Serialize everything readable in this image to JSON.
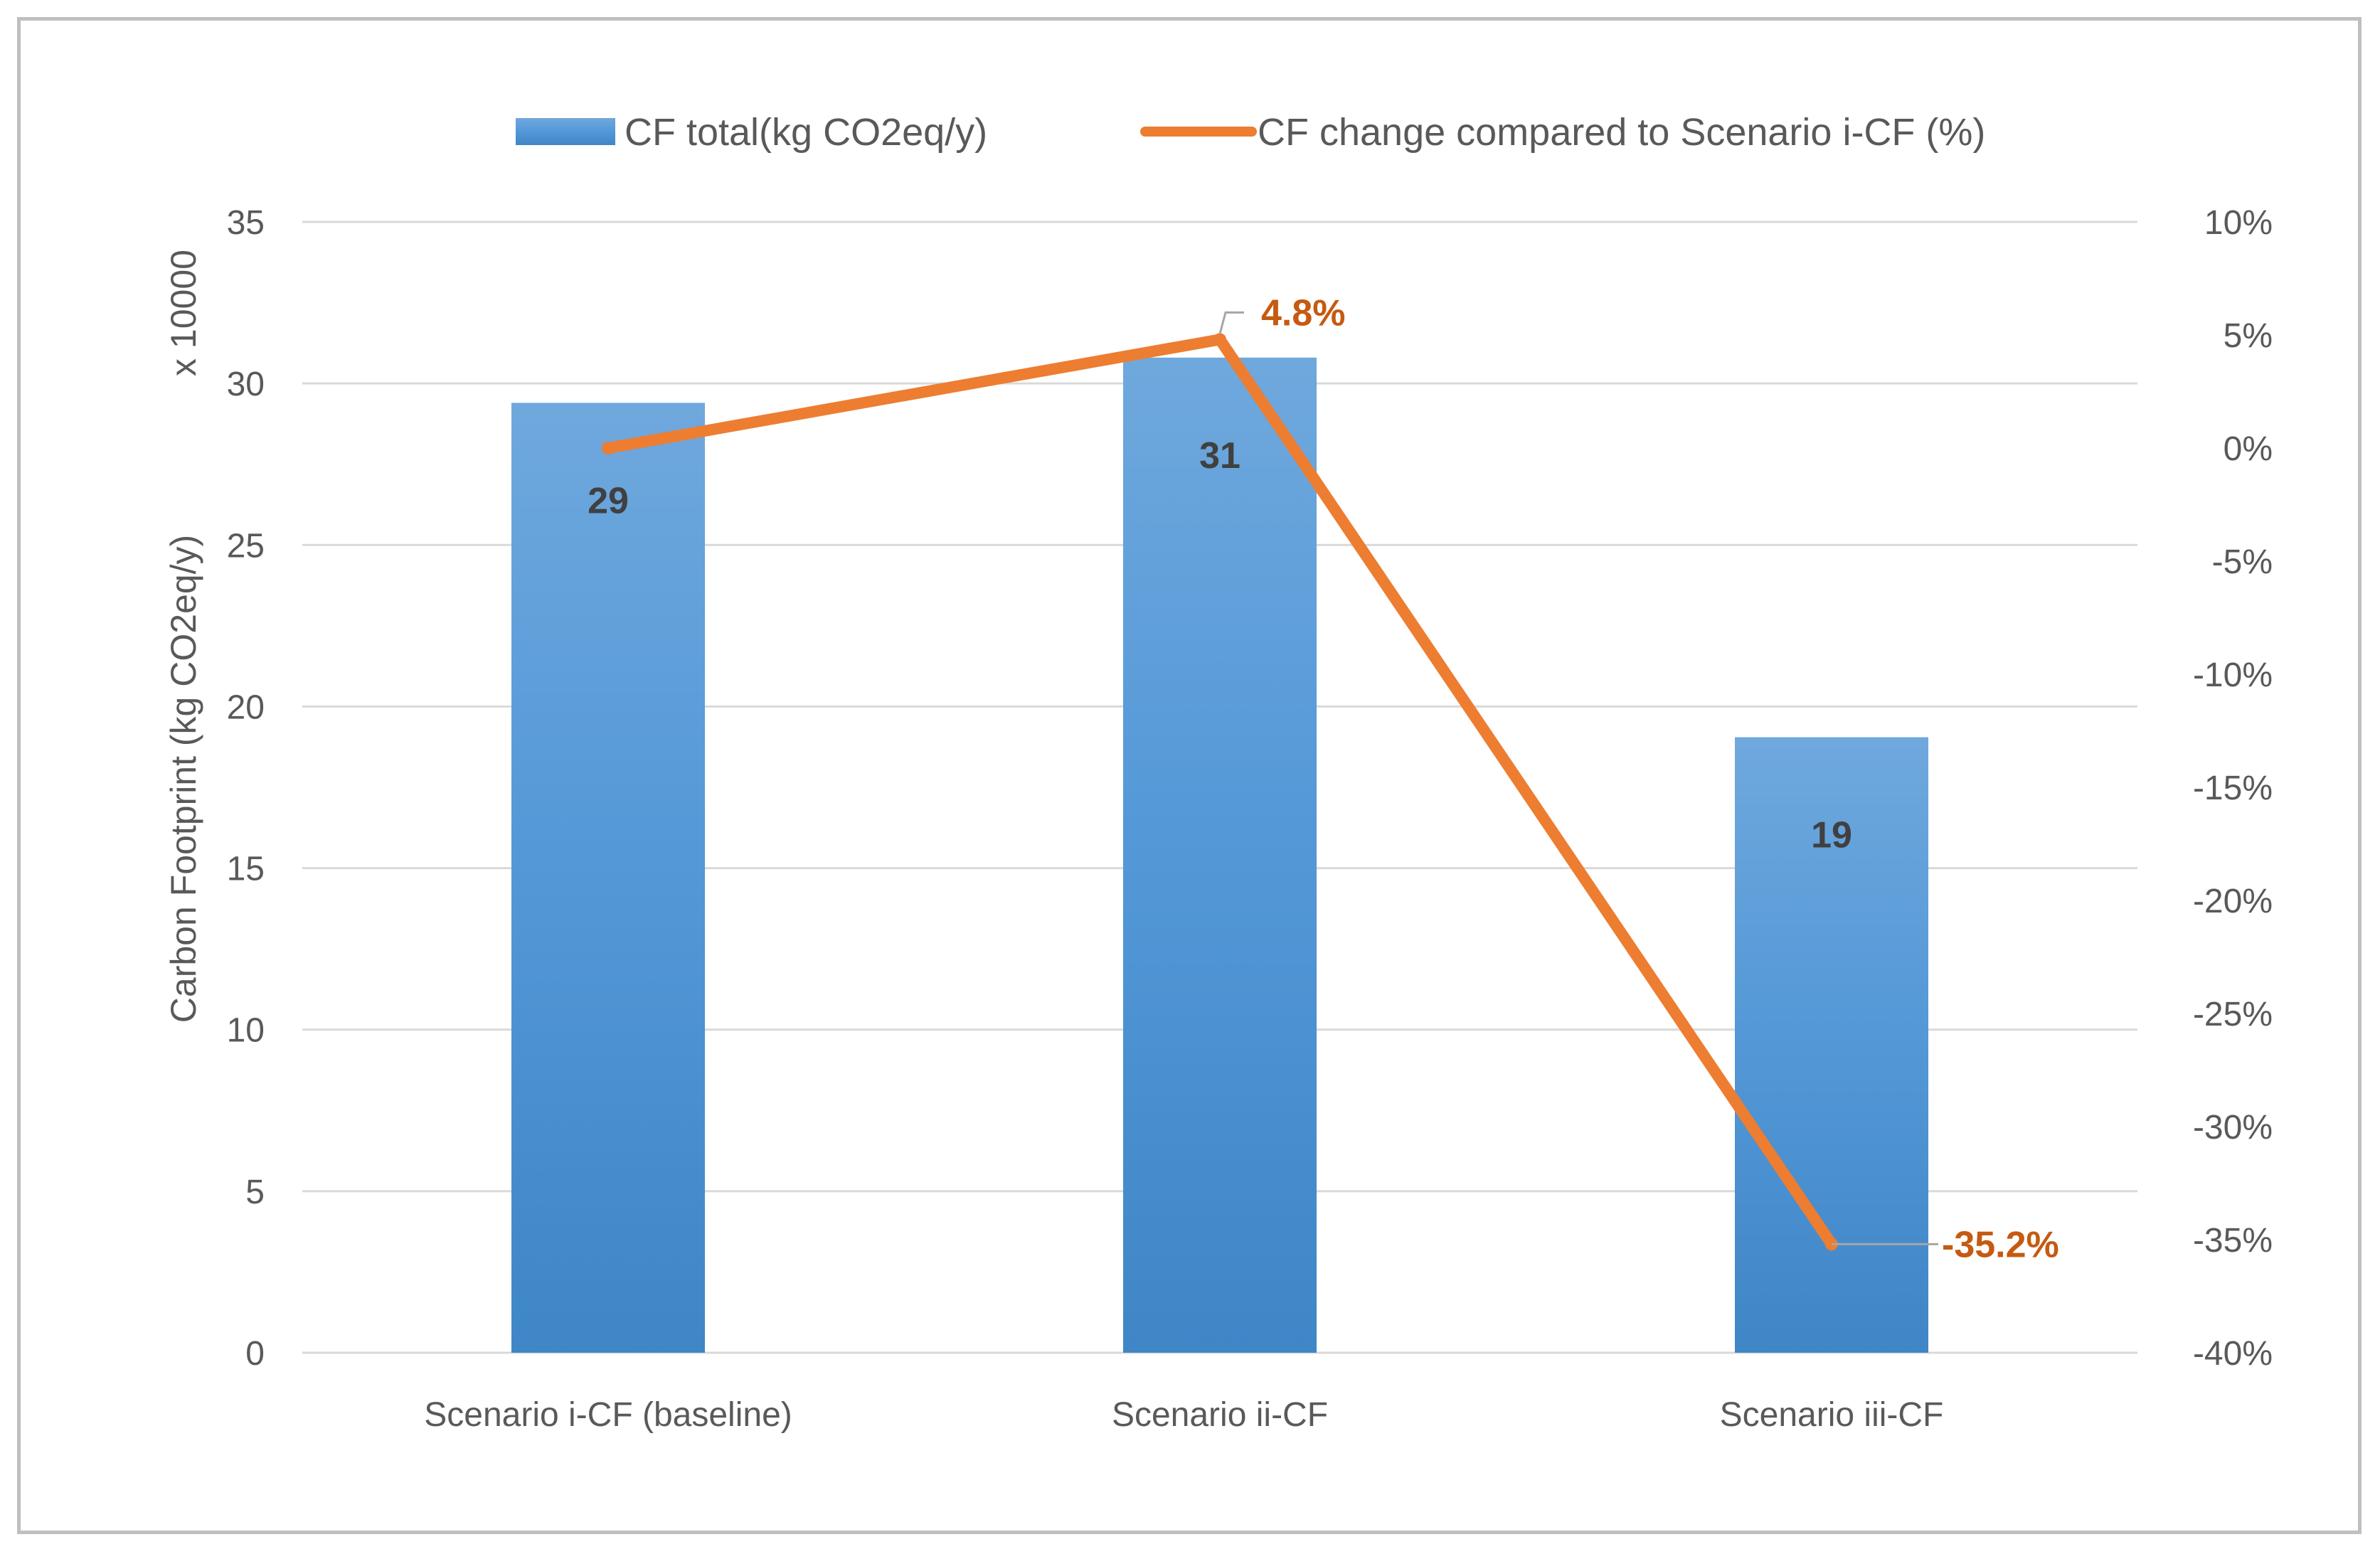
{
  "chart_data": {
    "type": "bar",
    "categories": [
      "Scenario i-CF (baseline)",
      "Scenario ii-CF",
      "Scenario iii-CF"
    ],
    "series": [
      {
        "name": "CF total(kg CO2eq/y)",
        "type": "bar",
        "axis": "left",
        "values": [
          29.4,
          30.8,
          19.05
        ],
        "data_labels": [
          "29",
          "31",
          "19"
        ],
        "color": "#5b9bd5"
      },
      {
        "name": "CF change compared to Scenario i-CF (%)",
        "type": "line",
        "axis": "right",
        "values": [
          0,
          4.8,
          -35.2
        ],
        "data_labels": [
          "",
          "4.8%",
          "-35.2%"
        ],
        "color": "#ed7d31"
      }
    ],
    "ylabel": "Carbon Footprint (kg CO2eq/y)",
    "y_multiplier_label": "x 10000",
    "ylim": [
      0,
      35
    ],
    "y_ticks": [
      "0",
      "5",
      "10",
      "15",
      "20",
      "25",
      "30",
      "35"
    ],
    "y2lim": [
      -40,
      10
    ],
    "y2_ticks": [
      "-40%",
      "-35%",
      "-30%",
      "-25%",
      "-20%",
      "-15%",
      "-10%",
      "-5%",
      "0%",
      "5%",
      "10%"
    ],
    "grid": true,
    "legend": "top"
  }
}
